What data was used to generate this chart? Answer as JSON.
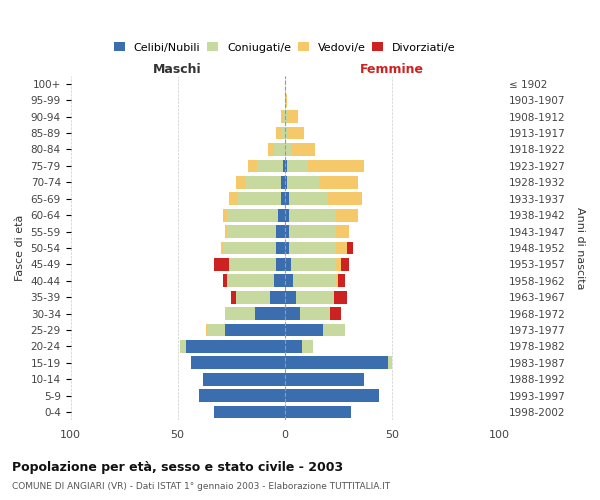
{
  "age_groups": [
    "100+",
    "95-99",
    "90-94",
    "85-89",
    "80-84",
    "75-79",
    "70-74",
    "65-69",
    "60-64",
    "55-59",
    "50-54",
    "45-49",
    "40-44",
    "35-39",
    "30-34",
    "25-29",
    "20-24",
    "15-19",
    "10-14",
    "5-9",
    "0-4"
  ],
  "birth_years": [
    "≤ 1902",
    "1903-1907",
    "1908-1912",
    "1913-1917",
    "1918-1922",
    "1923-1927",
    "1928-1932",
    "1933-1937",
    "1938-1942",
    "1943-1947",
    "1948-1952",
    "1953-1957",
    "1958-1962",
    "1963-1967",
    "1968-1972",
    "1973-1977",
    "1978-1982",
    "1983-1987",
    "1988-1992",
    "1993-1997",
    "1998-2002"
  ],
  "maschi": {
    "celibi": [
      0,
      0,
      0,
      0,
      0,
      1,
      2,
      2,
      3,
      4,
      4,
      4,
      5,
      7,
      14,
      28,
      46,
      44,
      38,
      40,
      33
    ],
    "coniugati": [
      0,
      0,
      1,
      2,
      5,
      12,
      16,
      20,
      24,
      23,
      25,
      22,
      22,
      16,
      14,
      8,
      3,
      0,
      0,
      0,
      0
    ],
    "vedovi": [
      0,
      0,
      1,
      2,
      3,
      4,
      5,
      4,
      2,
      1,
      1,
      0,
      0,
      0,
      0,
      1,
      0,
      0,
      0,
      0,
      0
    ],
    "divorziati": [
      0,
      0,
      0,
      0,
      0,
      0,
      0,
      0,
      0,
      0,
      0,
      7,
      2,
      2,
      0,
      0,
      0,
      0,
      0,
      0,
      0
    ]
  },
  "femmine": {
    "nubili": [
      0,
      0,
      0,
      0,
      0,
      1,
      1,
      2,
      2,
      2,
      2,
      3,
      4,
      5,
      7,
      18,
      8,
      48,
      37,
      44,
      31
    ],
    "coniugate": [
      0,
      0,
      1,
      1,
      3,
      10,
      15,
      18,
      22,
      22,
      22,
      21,
      20,
      18,
      14,
      10,
      5,
      2,
      0,
      0,
      0
    ],
    "vedove": [
      0,
      1,
      5,
      8,
      11,
      26,
      18,
      16,
      10,
      6,
      5,
      2,
      1,
      0,
      0,
      0,
      0,
      0,
      0,
      0,
      0
    ],
    "divorziate": [
      0,
      0,
      0,
      0,
      0,
      0,
      0,
      0,
      0,
      0,
      3,
      4,
      3,
      6,
      5,
      0,
      0,
      0,
      0,
      0,
      0
    ]
  },
  "colors": {
    "celibi_nubili": "#3A6EAF",
    "coniugati_e": "#C8D9A0",
    "vedovi_e": "#F5C96A",
    "divorziati_e": "#CC2222"
  },
  "title": "Popolazione per età, sesso e stato civile - 2003",
  "subtitle": "COMUNE DI ANGIARI (VR) - Dati ISTAT 1° gennaio 2003 - Elaborazione TUTTITALIA.IT",
  "xlabel_left": "Maschi",
  "xlabel_right": "Femmine",
  "ylabel_left": "Fasce di età",
  "ylabel_right": "Anni di nascita",
  "xlim": 100,
  "background_color": "#ffffff",
  "grid_color": "#cccccc",
  "fig_width": 6.0,
  "fig_height": 5.0,
  "dpi": 100
}
